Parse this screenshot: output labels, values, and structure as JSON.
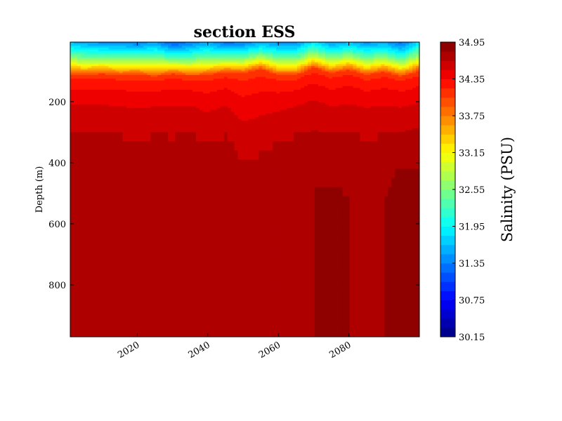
{
  "chart_data": {
    "type": "heatmap",
    "title": "section ESS",
    "xlabel": "",
    "ylabel": "Depth (m)",
    "xlim": [
      2001,
      2100
    ],
    "ylim": [
      970,
      5
    ],
    "x_ticks": [
      2020,
      2040,
      2060,
      2080
    ],
    "y_ticks": [
      200,
      400,
      600,
      800
    ],
    "colorbar": {
      "label": "Salinity (PSU)",
      "vmin": 30.15,
      "vmax": 34.95,
      "levels": 32,
      "tick_values": [
        30.15,
        30.75,
        31.35,
        31.95,
        32.55,
        33.15,
        33.75,
        34.35,
        34.95
      ],
      "tick_labels": [
        "30.15",
        "30.75",
        "31.35",
        "31.95",
        "32.55",
        "33.15",
        "33.75",
        "34.35",
        "34.95"
      ],
      "colormap": "jet",
      "colors": [
        "#00007f",
        "#0000ff",
        "#007fff",
        "#00ffff",
        "#7fff7f",
        "#ffff00",
        "#ff7f00",
        "#ff0000",
        "#7f0000"
      ]
    },
    "series": [
      {
        "name": "",
        "x": [
          2001,
          2005,
          2010,
          2015,
          2020,
          2025,
          2030,
          2035,
          2040,
          2045,
          2050,
          2055,
          2060,
          2065,
          2070,
          2075,
          2080,
          2085,
          2090,
          2095,
          2100
        ],
        "surface_salinity": [
          31.6,
          31.5,
          31.4,
          31.4,
          31.3,
          31.5,
          31.1,
          31.3,
          31.5,
          31.2,
          31.3,
          31.5,
          31.4,
          31.4,
          31.8,
          31.4,
          31.6,
          31.4,
          31.5,
          31.2,
          31.8
        ],
        "halocline_depth": [
          110,
          112,
          108,
          113,
          110,
          116,
          108,
          115,
          112,
          103,
          106,
          92,
          112,
          112,
          88,
          106,
          95,
          112,
          102,
          117,
          98
        ],
        "isohaline_34_6_depth": [
          265,
          262,
          265,
          270,
          285,
          270,
          275,
          265,
          300,
          270,
          350,
          330,
          295,
          270,
          250,
          275,
          265,
          280,
          270,
          275,
          260
        ],
        "deep_max_salinity": [
          34.8,
          34.8,
          34.8,
          34.8,
          34.8,
          34.8,
          34.8,
          34.8,
          34.8,
          34.8,
          34.8,
          34.8,
          34.8,
          34.8,
          34.8,
          34.85,
          34.8,
          34.8,
          34.8,
          34.95,
          34.9
        ]
      }
    ]
  }
}
